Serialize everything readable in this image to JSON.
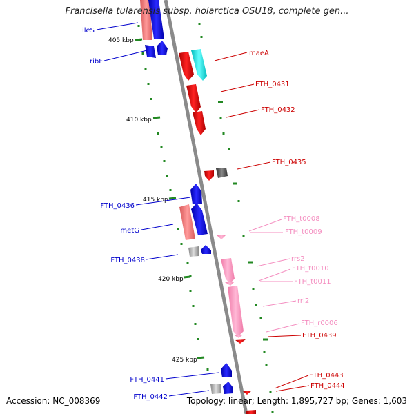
{
  "title": "Francisella tularensis subsp. holarctica OSU18, complete gen...",
  "accession": "Accession: NC_008369",
  "summary": "Topology: linear; Length: 1,895,727 bp; Genes: 1,603",
  "ticks": [
    "405 kbp",
    "410 kbp",
    "415 kbp",
    "420 kbp",
    "425 kbp"
  ],
  "genes_left": [
    "ileS",
    "ribF",
    "FTH_0436",
    "metG",
    "FTH_0438",
    "FTH_0441",
    "FTH_0442"
  ],
  "genes_right": [
    "maeA",
    "FTH_0431",
    "FTH_0432",
    "FTH_0435",
    "FTH_0439",
    "FTH_0443",
    "FTH_0444"
  ],
  "rna_right": [
    "FTH_t0008",
    "FTH_t0009",
    "rrs2",
    "FTH_t0010",
    "FTH_t0011",
    "rrl2",
    "FTH_r0006"
  ],
  "colors": {
    "forward_cds": "#0000ee",
    "reverse_cds": "#ee0000",
    "rna": "#ff99cc",
    "pseudo_left": "#e88080",
    "tick": "#228822",
    "axis": "#8a8a8a"
  }
}
